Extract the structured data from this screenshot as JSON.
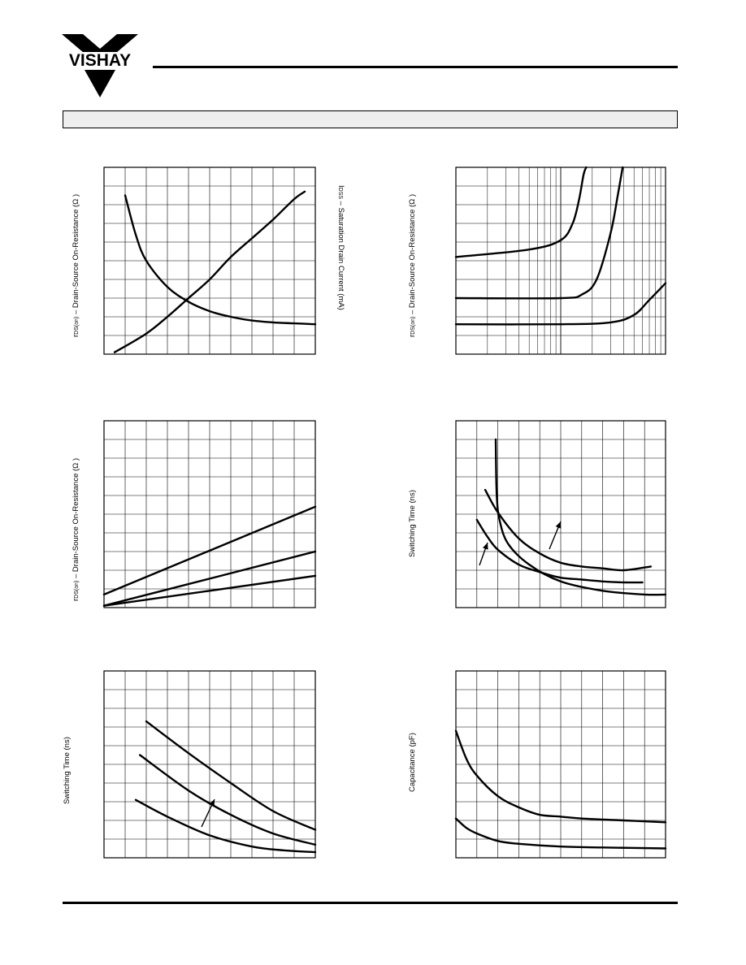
{
  "header": {
    "logo_text": "VISHAY"
  },
  "colors": {
    "ink": "#000000",
    "bar_fill": "#eeeeee"
  },
  "charts": [
    {
      "id": "c1",
      "ylabel_sym": "r",
      "ylabel_sub": "DS(on)",
      "ylabel_rest": " – Drain-Source On-Resistance (Ω )"
    },
    {
      "id": "c1b",
      "ylabel_sym": "I",
      "ylabel_sub": "DSS",
      "ylabel_rest": " – Saturation Drain Current (mA)"
    },
    {
      "id": "c2",
      "ylabel_sym": "r",
      "ylabel_sub": "DS(on)",
      "ylabel_rest": " – Drain-Source On-Resistance (Ω )"
    },
    {
      "id": "c3",
      "ylabel_sym": "r",
      "ylabel_sub": "DS(on)",
      "ylabel_rest": " – Drain-Source On-Resistance (Ω )"
    },
    {
      "id": "c4",
      "ylabel_sym": "",
      "ylabel_sub": "",
      "ylabel_rest": "Switching Time (ns)"
    },
    {
      "id": "c5",
      "ylabel_sym": "",
      "ylabel_sub": "",
      "ylabel_rest": "Switching Time (ns)"
    },
    {
      "id": "c6",
      "ylabel_sym": "",
      "ylabel_sub": "",
      "ylabel_rest": "Capacitance (pF)"
    }
  ],
  "chart_data": [
    {
      "type": "line",
      "grid": true,
      "xlim": [
        0,
        10
      ],
      "ylim": [
        0,
        10
      ],
      "series": [
        {
          "x": [
            1,
            1.5,
            2,
            3,
            4,
            5,
            6,
            7,
            8,
            9,
            10
          ],
          "y": [
            8.5,
            6.4,
            5.0,
            3.6,
            2.8,
            2.3,
            2.0,
            1.8,
            1.7,
            1.65,
            1.6
          ]
        },
        {
          "x": [
            0.5,
            2,
            3,
            4,
            5,
            6,
            7,
            8,
            9,
            9.5
          ],
          "y": [
            0.1,
            1.1,
            2.0,
            3.0,
            4.0,
            5.2,
            6.2,
            7.2,
            8.3,
            8.7
          ]
        }
      ]
    },
    {
      "type": "line",
      "grid": true,
      "xscale": "log",
      "xlim": [
        0.1,
        10
      ],
      "ylim": [
        0,
        10
      ],
      "series": [
        {
          "x": [
            0.1,
            0.5,
            1,
            1.3,
            1.5,
            1.65,
            1.75
          ],
          "y": [
            5.2,
            5.6,
            6.1,
            7.0,
            8.3,
            9.6,
            10.0
          ]
        },
        {
          "x": [
            0.1,
            1,
            1.6,
            2.2,
            3.0,
            3.5,
            3.9
          ],
          "y": [
            3.0,
            3.0,
            3.2,
            4.0,
            6.5,
            8.5,
            10.0
          ]
        },
        {
          "x": [
            0.1,
            1,
            3,
            5,
            7,
            10
          ],
          "y": [
            1.6,
            1.6,
            1.7,
            2.1,
            2.9,
            3.8
          ]
        }
      ]
    },
    {
      "type": "line",
      "grid": true,
      "xlim": [
        0,
        10
      ],
      "ylim": [
        0,
        10
      ],
      "series": [
        {
          "x": [
            0,
            10
          ],
          "y": [
            0.7,
            5.4
          ]
        },
        {
          "x": [
            0,
            10
          ],
          "y": [
            0.1,
            3.0
          ]
        },
        {
          "x": [
            0,
            10
          ],
          "y": [
            0.1,
            1.7
          ]
        }
      ]
    },
    {
      "type": "line",
      "grid": true,
      "xlim": [
        0,
        10
      ],
      "ylim": [
        0,
        10
      ],
      "series": [
        {
          "x": [
            1.9,
            1.95,
            2.1,
            2.5,
            3.5,
            5,
            7,
            9,
            10
          ],
          "y": [
            9.0,
            6.0,
            4.6,
            3.4,
            2.3,
            1.4,
            0.9,
            0.7,
            0.7
          ]
        },
        {
          "x": [
            1.4,
            2,
            3,
            4,
            5,
            6,
            7,
            8,
            9.3
          ],
          "y": [
            6.3,
            5.1,
            3.7,
            2.9,
            2.4,
            2.2,
            2.1,
            2.0,
            2.2
          ]
        },
        {
          "x": [
            1,
            1.5,
            2,
            3,
            4,
            5,
            6,
            7,
            8,
            8.9
          ],
          "y": [
            4.7,
            3.8,
            3.1,
            2.3,
            1.9,
            1.6,
            1.5,
            1.4,
            1.35,
            1.35
          ]
        }
      ]
    },
    {
      "type": "line",
      "grid": true,
      "xlim": [
        0,
        10
      ],
      "ylim": [
        0,
        10
      ],
      "series": [
        {
          "x": [
            2,
            4,
            6,
            8,
            10
          ],
          "y": [
            7.3,
            5.6,
            4.0,
            2.5,
            1.5
          ]
        },
        {
          "x": [
            1.7,
            4,
            6,
            8,
            10
          ],
          "y": [
            5.5,
            3.6,
            2.3,
            1.3,
            0.7
          ]
        },
        {
          "x": [
            1.5,
            3,
            5,
            7,
            8.5,
            10
          ],
          "y": [
            3.1,
            2.2,
            1.2,
            0.6,
            0.4,
            0.3
          ]
        }
      ]
    },
    {
      "type": "line",
      "grid": true,
      "xlim": [
        0,
        10
      ],
      "ylim": [
        0,
        10
      ],
      "series": [
        {
          "x": [
            0,
            0.5,
            1,
            2,
            3,
            4,
            5,
            6,
            8,
            10
          ],
          "y": [
            6.8,
            5.3,
            4.4,
            3.3,
            2.7,
            2.3,
            2.2,
            2.1,
            2.0,
            1.9
          ]
        },
        {
          "x": [
            0,
            0.5,
            1,
            2,
            3,
            5,
            7,
            10
          ],
          "y": [
            2.1,
            1.6,
            1.3,
            0.9,
            0.75,
            0.6,
            0.55,
            0.5
          ]
        }
      ]
    }
  ]
}
